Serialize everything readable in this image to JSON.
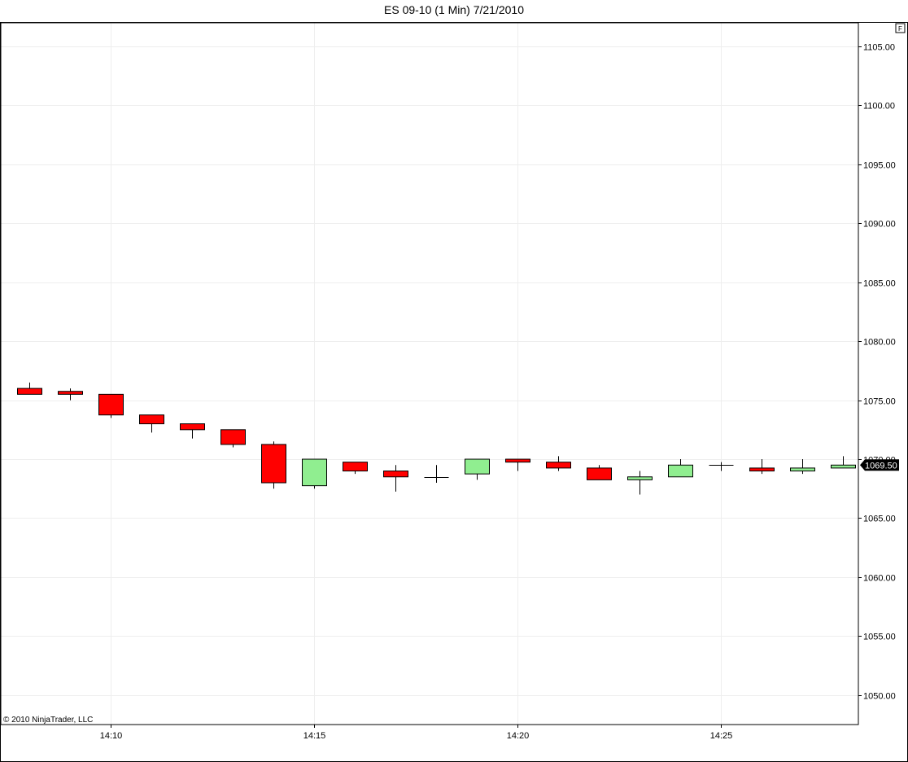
{
  "chart_data": {
    "type": "candlestick",
    "title": "ES 09-10 (1 Min)  7/21/2010",
    "copyright": "© 2010 NinjaTrader, LLC",
    "y_axis": {
      "ylim": [
        1047.5,
        1107
      ],
      "ticks": [
        1105,
        1100,
        1095,
        1090,
        1085,
        1080,
        1075,
        1070,
        1065,
        1060,
        1055,
        1050
      ],
      "tick_labels": [
        "1105.00",
        "1100.00",
        "1095.00",
        "1090.00",
        "1085.00",
        "1080.00",
        "1075.00",
        "1070.00",
        "1065.00",
        "1060.00",
        "1055.00",
        "1050.00"
      ],
      "position": "right"
    },
    "x_axis": {
      "ticks": [
        "14:10",
        "14:15",
        "14:20",
        "14:25"
      ]
    },
    "grid": true,
    "last_price_label": "1069.50",
    "box_label": "F",
    "colors": {
      "up": "#90ee90",
      "down": "#ff0000",
      "wick": "#000000",
      "grid": "#eeeeee"
    },
    "bars": [
      {
        "time": "14:08",
        "open": 1076.0,
        "high": 1076.5,
        "low": 1075.5,
        "close": 1075.5
      },
      {
        "time": "14:09",
        "open": 1075.75,
        "high": 1076.0,
        "low": 1075.0,
        "close": 1075.5
      },
      {
        "time": "14:10",
        "open": 1075.5,
        "high": 1075.5,
        "low": 1073.5,
        "close": 1073.75
      },
      {
        "time": "14:11",
        "open": 1073.75,
        "high": 1073.75,
        "low": 1072.25,
        "close": 1073.0
      },
      {
        "time": "14:12",
        "open": 1073.0,
        "high": 1073.0,
        "low": 1071.75,
        "close": 1072.5
      },
      {
        "time": "14:13",
        "open": 1072.5,
        "high": 1072.5,
        "low": 1071.0,
        "close": 1071.25
      },
      {
        "time": "14:14",
        "open": 1071.25,
        "high": 1071.5,
        "low": 1067.5,
        "close": 1068.0
      },
      {
        "time": "14:15",
        "open": 1067.75,
        "high": 1070.0,
        "low": 1067.5,
        "close": 1070.0
      },
      {
        "time": "14:16",
        "open": 1069.75,
        "high": 1069.75,
        "low": 1068.75,
        "close": 1069.0
      },
      {
        "time": "14:17",
        "open": 1069.0,
        "high": 1069.5,
        "low": 1067.25,
        "close": 1068.5
      },
      {
        "time": "14:18",
        "open": 1068.5,
        "high": 1069.5,
        "low": 1068.0,
        "close": 1068.5
      },
      {
        "time": "14:19",
        "open": 1068.75,
        "high": 1070.0,
        "low": 1068.25,
        "close": 1070.0
      },
      {
        "time": "14:20",
        "open": 1070.0,
        "high": 1070.0,
        "low": 1069.0,
        "close": 1069.75
      },
      {
        "time": "14:21",
        "open": 1069.75,
        "high": 1070.25,
        "low": 1069.0,
        "close": 1069.25
      },
      {
        "time": "14:22",
        "open": 1069.25,
        "high": 1069.5,
        "low": 1068.25,
        "close": 1068.25
      },
      {
        "time": "14:23",
        "open": 1068.25,
        "high": 1069.0,
        "low": 1067.0,
        "close": 1068.5
      },
      {
        "time": "14:24",
        "open": 1068.5,
        "high": 1070.0,
        "low": 1068.5,
        "close": 1069.5
      },
      {
        "time": "14:25",
        "open": 1069.5,
        "high": 1069.75,
        "low": 1069.0,
        "close": 1069.5
      },
      {
        "time": "14:26",
        "open": 1069.25,
        "high": 1070.0,
        "low": 1068.75,
        "close": 1069.0
      },
      {
        "time": "14:27",
        "open": 1069.0,
        "high": 1070.0,
        "low": 1068.75,
        "close": 1069.25
      },
      {
        "time": "14:28",
        "open": 1069.25,
        "high": 1070.25,
        "low": 1069.25,
        "close": 1069.5
      }
    ]
  }
}
